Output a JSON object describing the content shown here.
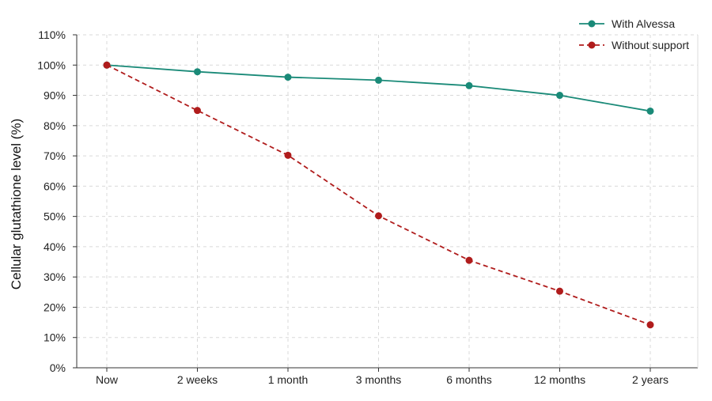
{
  "chart_data": {
    "type": "line",
    "title": "",
    "xlabel": "",
    "ylabel": "Cellular glutathione level (%)",
    "categories": [
      "Now",
      "2 weeks",
      "1 month",
      "3 months",
      "6 months",
      "12 months",
      "2 years"
    ],
    "ylim": [
      0,
      110
    ],
    "yticks": [
      0,
      10,
      20,
      30,
      40,
      50,
      60,
      70,
      80,
      90,
      100,
      110
    ],
    "ytick_suffix": "%",
    "grid": true,
    "legend_position": "top-right",
    "series": [
      {
        "name": "With Alvessa",
        "values": [
          100,
          97.8,
          96,
          95,
          93.2,
          90,
          84.8
        ],
        "color": "#1a8a78",
        "line_style": "solid",
        "marker": "circle"
      },
      {
        "name": "Without support",
        "values": [
          100,
          85,
          70.2,
          50.2,
          35.5,
          25.3,
          14.2
        ],
        "color": "#b01c1c",
        "line_style": "dashed",
        "marker": "circle"
      }
    ]
  }
}
